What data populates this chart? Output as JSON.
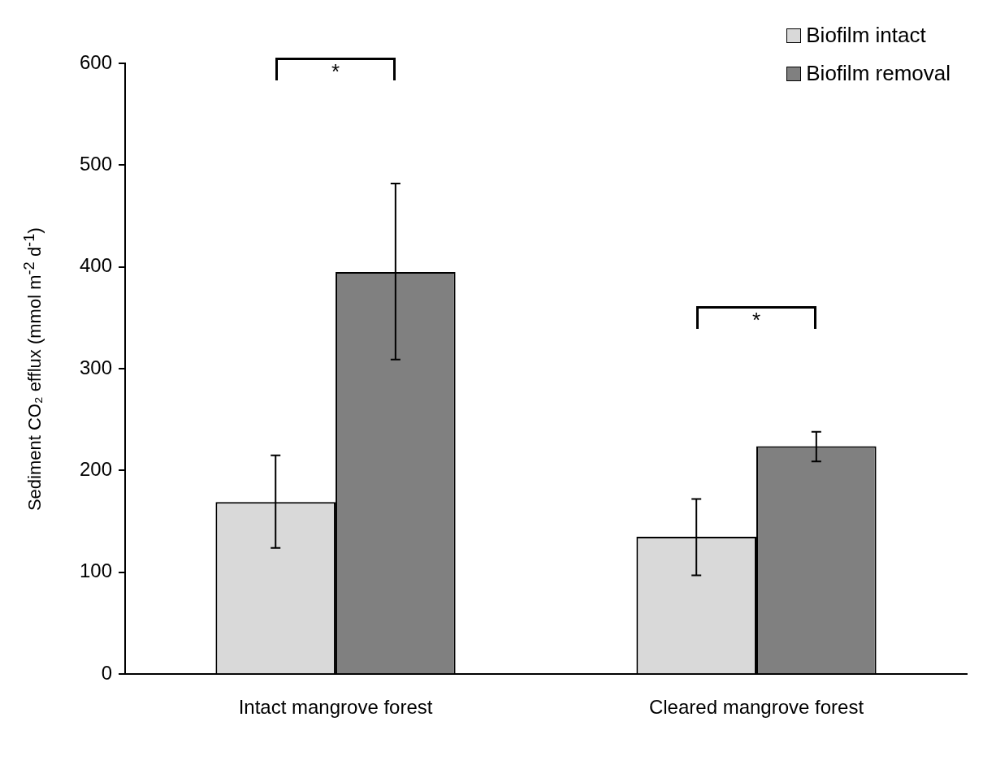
{
  "chart_data": {
    "type": "bar",
    "ylabel": "Sediment CO₂ efflux (mmol m$^{-2}$ d$^{-1}$)",
    "categories": [
      "Intact mangrove forest",
      "Cleared mangrove forest"
    ],
    "series": [
      {
        "name": "Biofilm intact",
        "color": "#d9d9d9",
        "values": [
          169,
          135
        ],
        "errors": [
          [
            124,
            215
          ],
          [
            97,
            172
          ]
        ]
      },
      {
        "name": "Biofilm removal",
        "color": "#808080",
        "values": [
          395,
          224
        ],
        "errors": [
          [
            309,
            482
          ],
          [
            209,
            238
          ]
        ]
      }
    ],
    "ylim": [
      0,
      600
    ],
    "yticks": [
      0,
      100,
      200,
      300,
      400,
      500,
      600
    ],
    "grid": false,
    "legend": "top right",
    "annotations": [
      "*",
      "*"
    ]
  }
}
